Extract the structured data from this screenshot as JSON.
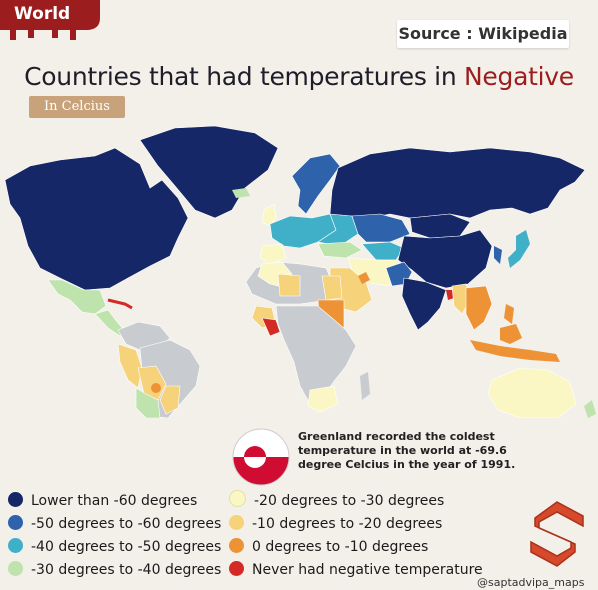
{
  "header": {
    "tag": "World",
    "source": "Source : Wikipedia",
    "title_main": "Countries that had temperatures in ",
    "title_emph": "Negative",
    "unit": "In Celcius"
  },
  "note": "Greenland recorded the coldest temperature in the world at -69.6 degree Celcius in the year of  1991.",
  "legend": [
    {
      "label": "Lower than -60 degrees",
      "color": "#152766"
    },
    {
      "label": "-50 degrees to -60 degrees",
      "color": "#2e62ab"
    },
    {
      "label": "-40 degrees to -50 degrees",
      "color": "#40b0c9"
    },
    {
      "label": "-30 degrees to -40 degrees",
      "color": "#bfe3ad"
    },
    {
      "label": "-20 degrees to -30 degrees",
      "color": "#fbf7c5"
    },
    {
      "label": "-10 degrees to -20 degrees",
      "color": "#f6d27a"
    },
    {
      "label": "0 degrees to -10 degrees",
      "color": "#ee9236"
    },
    {
      "label": "Never had negative temperature",
      "color": "#d32a26"
    }
  ],
  "colors": {
    "no_data": "#c8ccd0",
    "tag_red": "#9b1d1d",
    "flag_red": "#d00c33"
  },
  "handle": "@saptadvipa_maps"
}
